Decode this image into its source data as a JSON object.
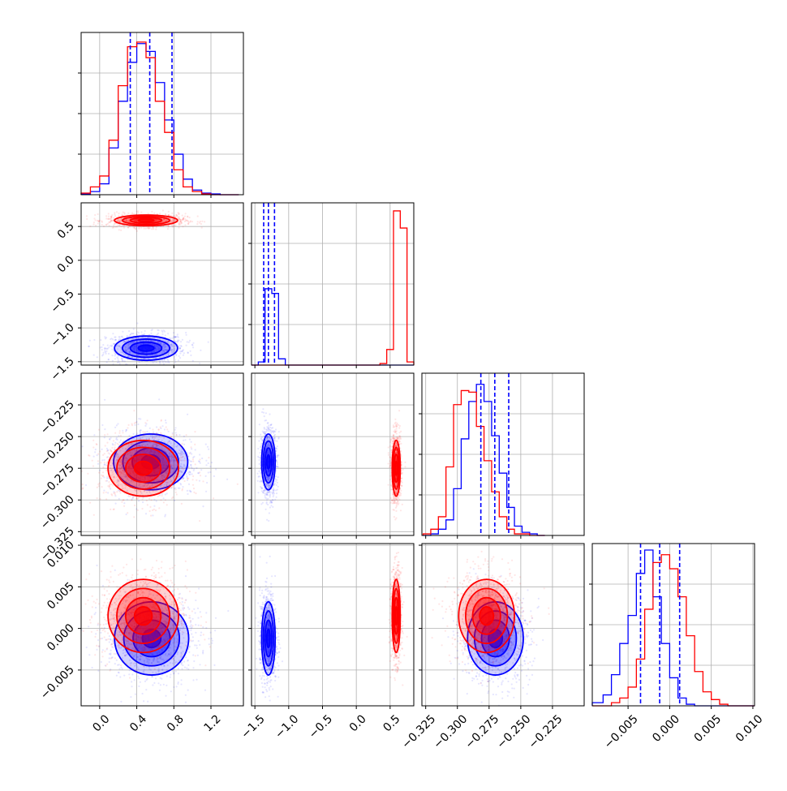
{
  "chart_data": {
    "type": "corner",
    "title": "",
    "colors": {
      "blue": "#0000ff",
      "red": "#ff0000",
      "grid": "#b0b0b0"
    },
    "series": [
      {
        "color": "#0000ff",
        "quantile_lines": [
          [
            0.33,
            0.54,
            0.78
          ],
          [
            -1.37,
            -1.3,
            -1.21
          ],
          [
            -0.2815,
            -0.2705,
            -0.2595
          ],
          [
            -0.0035,
            -0.0012,
            0.0012
          ]
        ]
      },
      {
        "color": "#ff0000",
        "quantile_lines": []
      }
    ],
    "params": [
      {
        "range": [
          -0.2,
          1.55
        ],
        "ticks": [
          0.0,
          0.4,
          0.8,
          1.2
        ],
        "tick_labels": [
          "0.0",
          "0.4",
          "0.8",
          "1.2"
        ]
      },
      {
        "range": [
          -1.55,
          0.85
        ],
        "ticks": [
          -1.5,
          -1.0,
          -0.5,
          0.0,
          0.5
        ],
        "tick_labels": [
          "−1.5",
          "−1.0",
          "−0.5",
          "0.0",
          "0.5"
        ]
      },
      {
        "range": [
          -0.328,
          -0.2
        ],
        "ticks": [
          -0.325,
          -0.3,
          -0.275,
          -0.25,
          -0.225
        ],
        "tick_labels": [
          "−0.325",
          "−0.300",
          "−0.275",
          "−0.250",
          "−0.225"
        ]
      },
      {
        "range": [
          -0.0093,
          0.0102
        ],
        "ticks": [
          -0.005,
          0.0,
          0.005,
          0.01
        ],
        "tick_labels": [
          "−0.005",
          "0.000",
          "0.005",
          "0.010"
        ]
      }
    ],
    "histograms": [
      {
        "bin_edges": [
          -0.2,
          -0.1,
          0.0,
          0.1,
          0.2,
          0.3,
          0.4,
          0.5,
          0.6,
          0.7,
          0.8,
          0.9,
          1.0,
          1.1,
          1.2,
          1.3,
          1.4,
          1.5
        ],
        "blue": [
          0.005,
          0.02,
          0.07,
          0.3,
          0.6,
          0.85,
          0.97,
          0.92,
          0.72,
          0.48,
          0.26,
          0.1,
          0.03,
          0.01,
          0.005,
          0.0,
          0.0
        ],
        "red": [
          0.01,
          0.05,
          0.12,
          0.35,
          0.7,
          0.95,
          0.98,
          0.88,
          0.6,
          0.4,
          0.16,
          0.05,
          0.02,
          0.005,
          0.0,
          0.0,
          0.0
        ]
      },
      {
        "bin_edges": [
          -1.55,
          -1.45,
          -1.35,
          -1.25,
          -1.15,
          -1.05,
          -0.95,
          -0.85,
          -0.75,
          -0.65,
          -0.55,
          -0.45,
          -0.35,
          -0.25,
          -0.15,
          -0.05,
          0.05,
          0.15,
          0.25,
          0.35,
          0.45,
          0.55,
          0.65,
          0.75,
          0.85
        ],
        "blue": [
          0.0,
          0.02,
          0.49,
          0.46,
          0.04,
          0.0,
          0.0,
          0.0,
          0.0,
          0.0,
          0.0,
          0.0,
          0.0,
          0.0,
          0.0,
          0.0,
          0.0,
          0.0,
          0.0,
          0.0,
          0.0,
          0.0,
          0.0,
          0.0
        ],
        "red": [
          0.0,
          0.0,
          0.0,
          0.0,
          0.0,
          0.0,
          0.0,
          0.0,
          0.0,
          0.0,
          0.0,
          0.0,
          0.0,
          0.0,
          0.0,
          0.0,
          0.0,
          0.0,
          0.0,
          0.01,
          0.1,
          0.99,
          0.88,
          0.02
        ]
      },
      {
        "bin_edges": [
          -0.327,
          -0.321,
          -0.315,
          -0.309,
          -0.303,
          -0.297,
          -0.291,
          -0.285,
          -0.279,
          -0.273,
          -0.267,
          -0.261,
          -0.255,
          -0.249,
          -0.243,
          -0.237,
          -0.231
        ],
        "blue": [
          0.0,
          0.01,
          0.04,
          0.1,
          0.3,
          0.62,
          0.86,
          0.97,
          0.86,
          0.64,
          0.4,
          0.18,
          0.06,
          0.02,
          0.01,
          0.0
        ],
        "red": [
          0.01,
          0.04,
          0.12,
          0.44,
          0.84,
          0.93,
          0.92,
          0.7,
          0.48,
          0.28,
          0.12,
          0.04,
          0.01,
          0.01,
          0.0,
          0.0
        ]
      },
      {
        "bin_edges": [
          -0.0093,
          -0.008,
          -0.007,
          -0.006,
          -0.005,
          -0.004,
          -0.003,
          -0.002,
          -0.001,
          0.0,
          0.001,
          0.002,
          0.003,
          0.004,
          0.005,
          0.006,
          0.007,
          0.008,
          0.009,
          0.0102
        ],
        "blue": [
          0.02,
          0.07,
          0.2,
          0.4,
          0.58,
          0.85,
          1.0,
          0.7,
          0.4,
          0.18,
          0.05,
          0.01,
          0.0,
          0.0,
          0.0,
          0.0,
          0.0,
          0.0,
          0.0
        ],
        "red": [
          0.0,
          0.0,
          0.02,
          0.05,
          0.12,
          0.3,
          0.62,
          0.92,
          0.97,
          0.88,
          0.7,
          0.45,
          0.22,
          0.09,
          0.04,
          0.01,
          0.0,
          0.0,
          0.0
        ]
      }
    ],
    "pairs": [
      {
        "row": 1,
        "col": 0,
        "blue_center": [
          0.5,
          -1.3
        ],
        "blue_sd": [
          0.17,
          0.09
        ],
        "red_center": [
          0.5,
          0.59
        ],
        "red_sd": [
          0.17,
          0.04
        ]
      },
      {
        "row": 2,
        "col": 0,
        "blue_center": [
          0.55,
          -0.27
        ],
        "blue_sd": [
          0.2,
          0.011
        ],
        "red_center": [
          0.47,
          -0.275
        ],
        "red_sd": [
          0.19,
          0.011
        ]
      },
      {
        "row": 2,
        "col": 1,
        "blue_center": [
          -1.3,
          -0.27
        ],
        "blue_sd": [
          0.05,
          0.011
        ],
        "red_center": [
          0.59,
          -0.275
        ],
        "red_sd": [
          0.03,
          0.011
        ]
      },
      {
        "row": 3,
        "col": 0,
        "blue_center": [
          0.56,
          -0.0012
        ],
        "blue_sd": [
          0.2,
          0.0022
        ],
        "red_center": [
          0.47,
          0.0015
        ],
        "red_sd": [
          0.19,
          0.0022
        ]
      },
      {
        "row": 3,
        "col": 1,
        "blue_center": [
          -1.3,
          -0.0012
        ],
        "blue_sd": [
          0.05,
          0.0022
        ],
        "red_center": [
          0.59,
          0.0015
        ],
        "red_sd": [
          0.03,
          0.0022
        ]
      },
      {
        "row": 3,
        "col": 2,
        "blue_center": [
          -0.27,
          -0.0012
        ],
        "blue_sd": [
          0.011,
          0.0022
        ],
        "red_center": [
          -0.277,
          0.0015
        ],
        "red_sd": [
          0.011,
          0.0022
        ]
      }
    ]
  }
}
